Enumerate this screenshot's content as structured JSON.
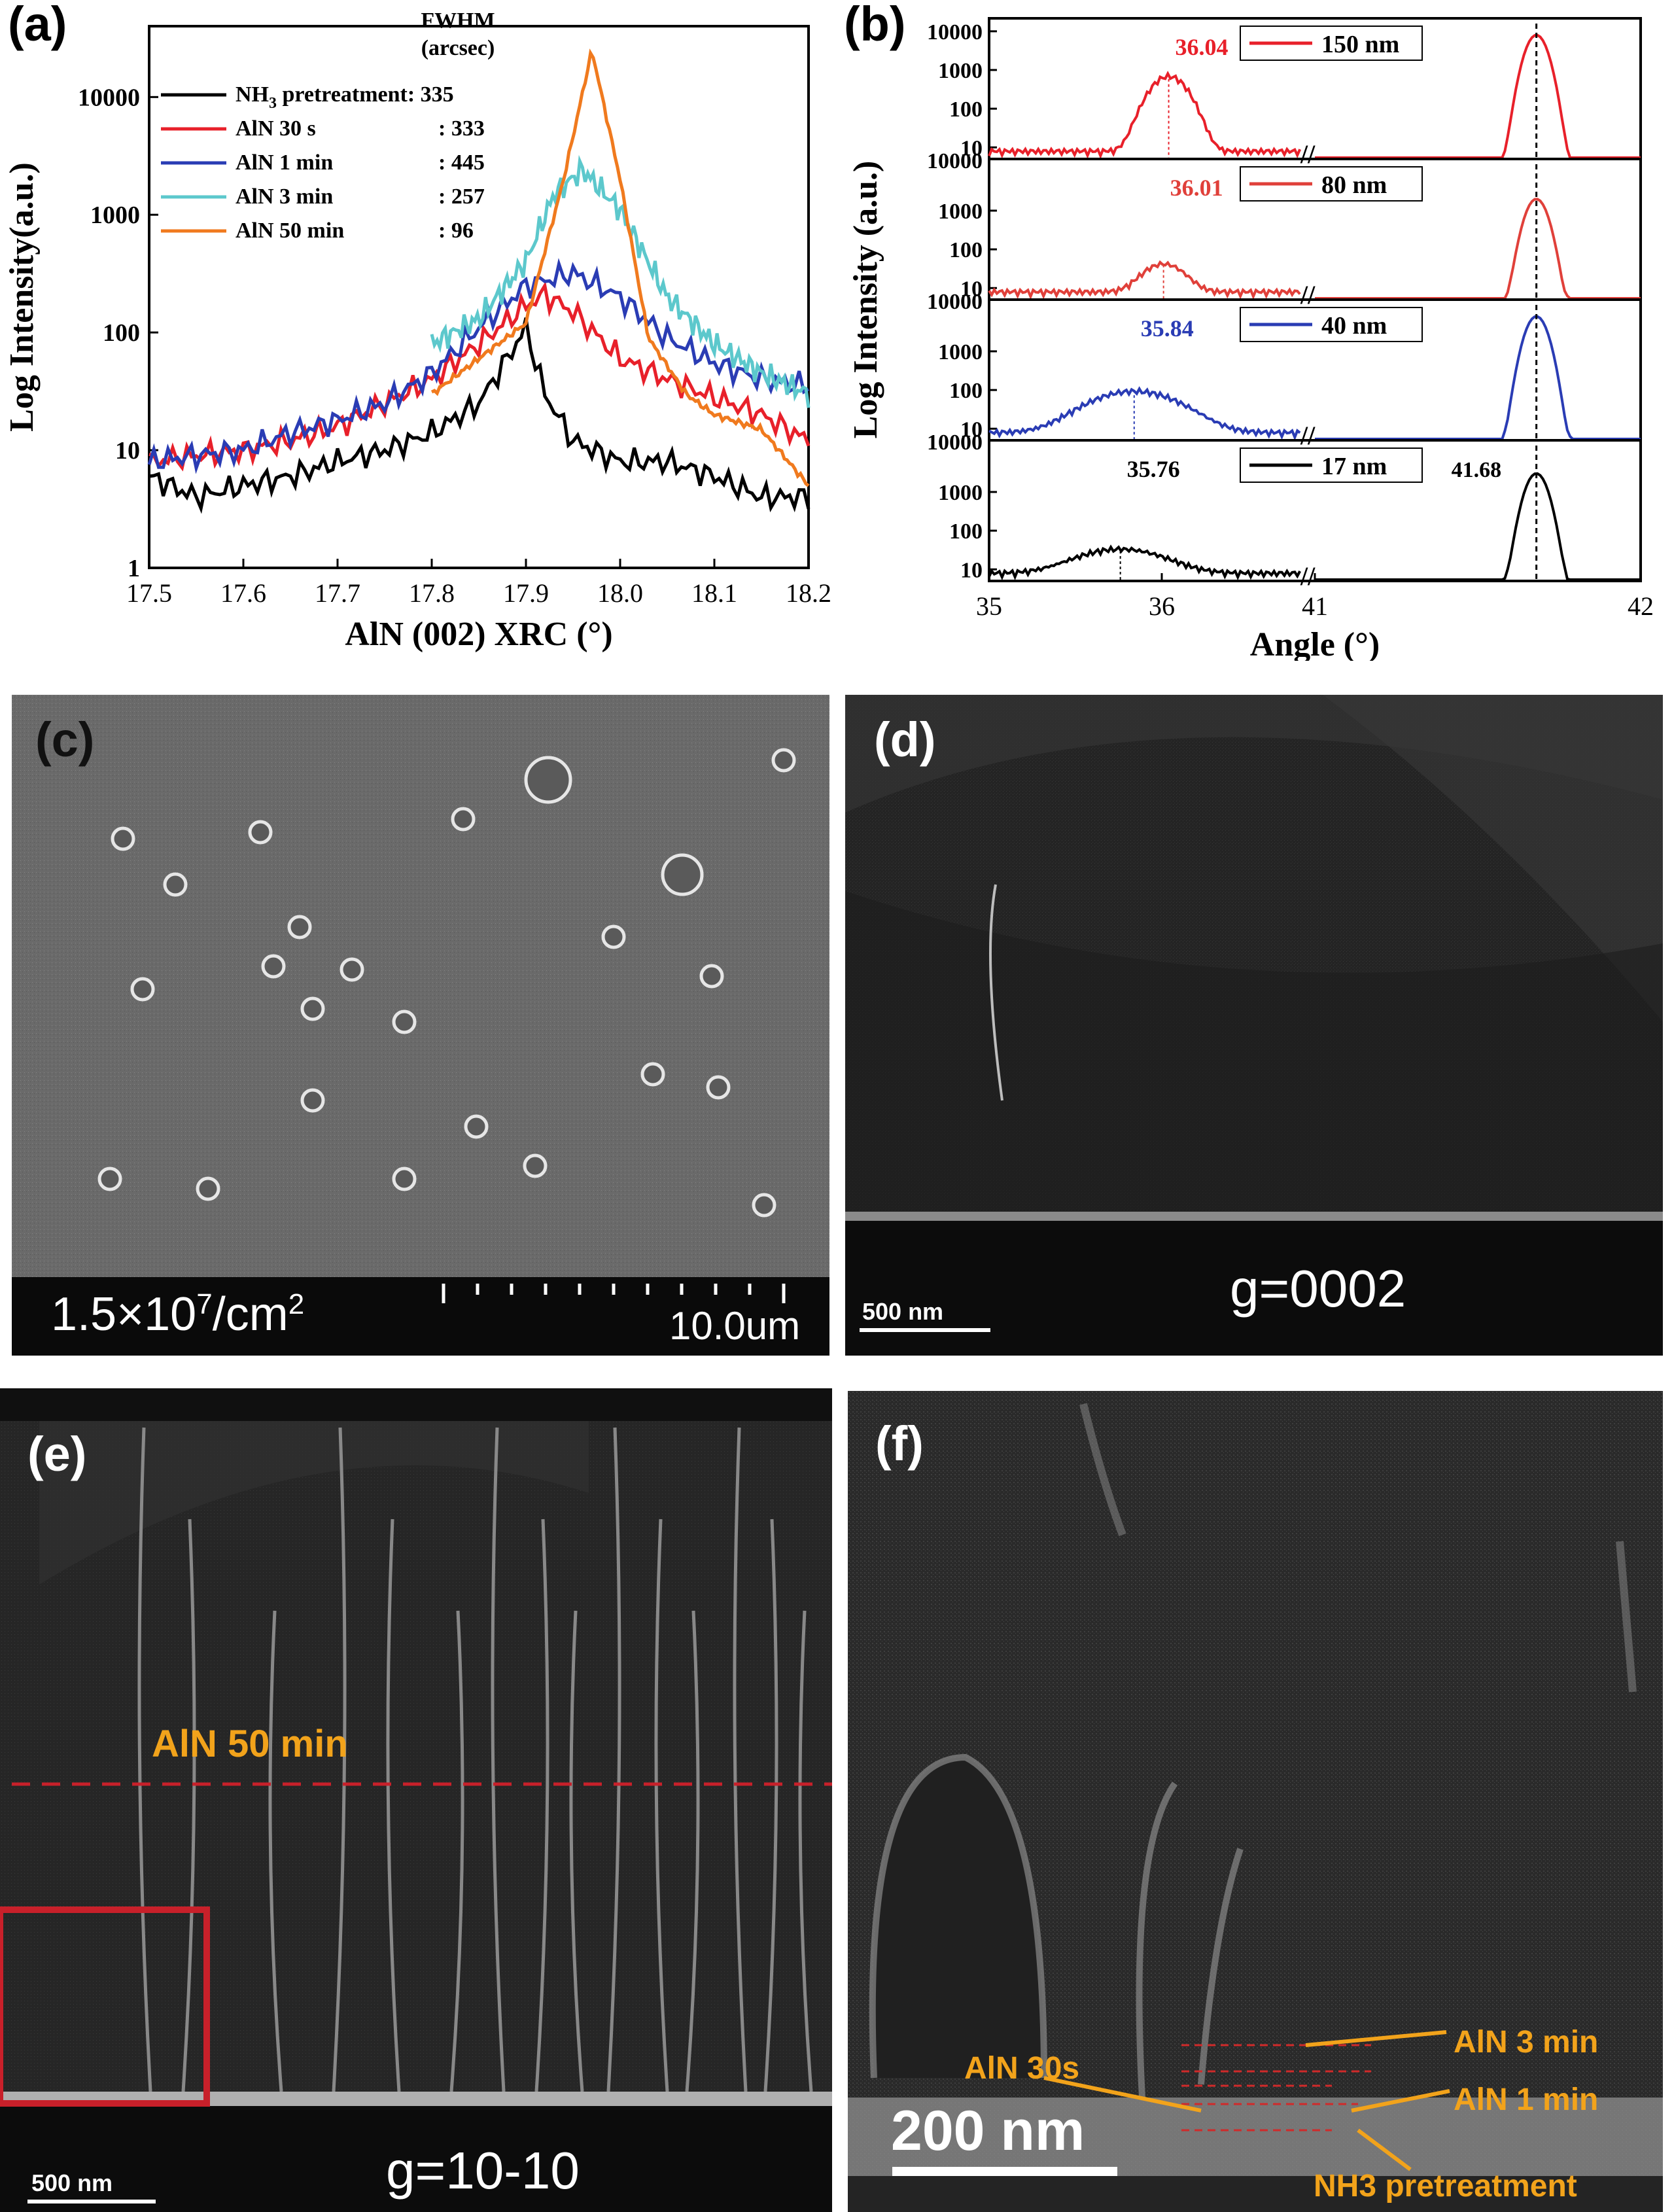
{
  "panels": {
    "a": "(a)",
    "b": "(b)",
    "c": "(c)",
    "d": "(d)",
    "e": "(e)",
    "f": "(f)"
  },
  "colors": {
    "nh3": "#000000",
    "s30": "#e8202a",
    "m1": "#2a3cb4",
    "m3": "#5cc8cc",
    "m50": "#f07a1e",
    "b150": "#e8202a",
    "b80": "#e0403a",
    "b40": "#2a3cb4",
    "b17": "#000000",
    "annot": "#f2a31b",
    "box": "#c8202a"
  },
  "chart_data": [
    {
      "type": "line",
      "panel": "(a)",
      "xlabel": "AlN (002) XRC (°)",
      "ylabel": "Log Intensity(a.u.)",
      "xlim": [
        17.5,
        18.2
      ],
      "ylim": [
        1,
        40000
      ],
      "yscale": "log",
      "xticks": [
        "17.5",
        "17.6",
        "17.7",
        "17.8",
        "17.9",
        "18.0",
        "18.1",
        "18.2"
      ],
      "yticks": [
        "1",
        "10",
        "100",
        "1000",
        "10000"
      ],
      "legend_title": [
        "FWHM",
        "(arcsec)"
      ],
      "legend_position": "top-left",
      "series": [
        {
          "key": "nh3",
          "label_main": "NH",
          "label_sub": "3",
          "label_rest": " pretreatment",
          "fwhm": ": 335",
          "x": [
            17.5,
            17.55,
            17.6,
            17.65,
            17.7,
            17.75,
            17.8,
            17.85,
            17.88,
            17.9,
            17.92,
            17.95,
            18.0,
            18.05,
            18.1,
            18.15,
            18.2
          ],
          "y": [
            6,
            4,
            5,
            6,
            8,
            10,
            14,
            25,
            60,
            110,
            30,
            12,
            8,
            8,
            6,
            4,
            4
          ]
        },
        {
          "key": "s30",
          "label_main": "AlN 30 s",
          "label_sub": "",
          "label_rest": "",
          "fwhm": ": 333",
          "x": [
            17.5,
            17.55,
            17.6,
            17.65,
            17.7,
            17.75,
            17.8,
            17.85,
            17.9,
            17.92,
            17.95,
            18.0,
            18.05,
            18.1,
            18.15,
            18.2
          ],
          "y": [
            8,
            9,
            10,
            12,
            16,
            25,
            40,
            80,
            170,
            210,
            150,
            60,
            40,
            28,
            20,
            12
          ]
        },
        {
          "key": "m1",
          "label_main": "AlN 1 min",
          "label_sub": "",
          "label_rest": "",
          "fwhm": ": 445",
          "x": [
            17.5,
            17.55,
            17.6,
            17.65,
            17.7,
            17.75,
            17.8,
            17.85,
            17.9,
            17.95,
            18.0,
            18.05,
            18.1,
            18.15,
            18.2
          ],
          "y": [
            8,
            9,
            10,
            14,
            18,
            25,
            45,
            110,
            250,
            320,
            200,
            90,
            55,
            40,
            35
          ]
        },
        {
          "key": "m3",
          "label_main": "AlN 3 min",
          "label_sub": "",
          "label_rest": "",
          "fwhm": ": 257",
          "x": [
            17.8,
            17.85,
            17.9,
            17.93,
            17.96,
            18.0,
            18.05,
            18.1,
            18.15,
            18.2
          ],
          "y": [
            80,
            130,
            400,
            1500,
            2400,
            1100,
            200,
            80,
            45,
            30
          ]
        },
        {
          "key": "m50",
          "label_main": "AlN 50 min",
          "label_sub": "",
          "label_rest": "",
          "fwhm": ": 96",
          "x": [
            17.8,
            17.85,
            17.9,
            17.94,
            17.97,
            18.0,
            18.03,
            18.07,
            18.1,
            18.15,
            18.2
          ],
          "y": [
            30,
            60,
            120,
            2000,
            25000,
            2000,
            90,
            30,
            20,
            15,
            5
          ]
        }
      ]
    },
    {
      "type": "line",
      "panel": "(b)",
      "xlabel": "Angle (°)",
      "ylabel": "Log Intensity (a.u.)",
      "yscale": "log",
      "broken_x_axis": true,
      "xticks": [
        "35",
        "36",
        "41",
        "42"
      ],
      "yticks_top": [
        "10",
        "100",
        "1000",
        "10000"
      ],
      "yticks": [
        "10",
        "100",
        "1000"
      ],
      "subplots": [
        {
          "key": "b150",
          "legend": "150 nm",
          "peak_label": "36.04",
          "peak_x": 36.04,
          "peak_y": 800,
          "gan_x": 41.68,
          "gan_y": 8000
        },
        {
          "key": "b80",
          "legend": "80 nm",
          "peak_label": "36.01",
          "peak_x": 36.01,
          "peak_y": 40,
          "gan_x": 41.68,
          "gan_y": 2000
        },
        {
          "key": "b40",
          "legend": "40 nm",
          "peak_label": "35.84",
          "peak_x": 35.84,
          "peak_y": 100,
          "gan_x": 41.68,
          "gan_y": 8000
        },
        {
          "key": "b17",
          "legend": "17 nm",
          "peak_label": "35.76",
          "peak_x": 35.76,
          "peak_y": 30,
          "gan_x": 41.68,
          "gan_y": 3000,
          "gan_label": "41.68"
        }
      ]
    }
  ],
  "micrographs": {
    "c": {
      "density_base": "1.5×10",
      "density_exp": "7",
      "density_unit": "/cm",
      "density_sq": "2",
      "scale": "10.0um"
    },
    "d": {
      "scale": "500 nm",
      "g": "g=0002"
    },
    "e": {
      "scale": "500 nm",
      "g": "g=10-10",
      "layer": "AlN 50 min"
    },
    "f": {
      "scale": "200 nm",
      "labels": {
        "s30": "AlN 30s",
        "m3": "AlN 3 min",
        "m1": "AlN 1 min",
        "nh3": "NH3 pretreatment"
      }
    }
  }
}
